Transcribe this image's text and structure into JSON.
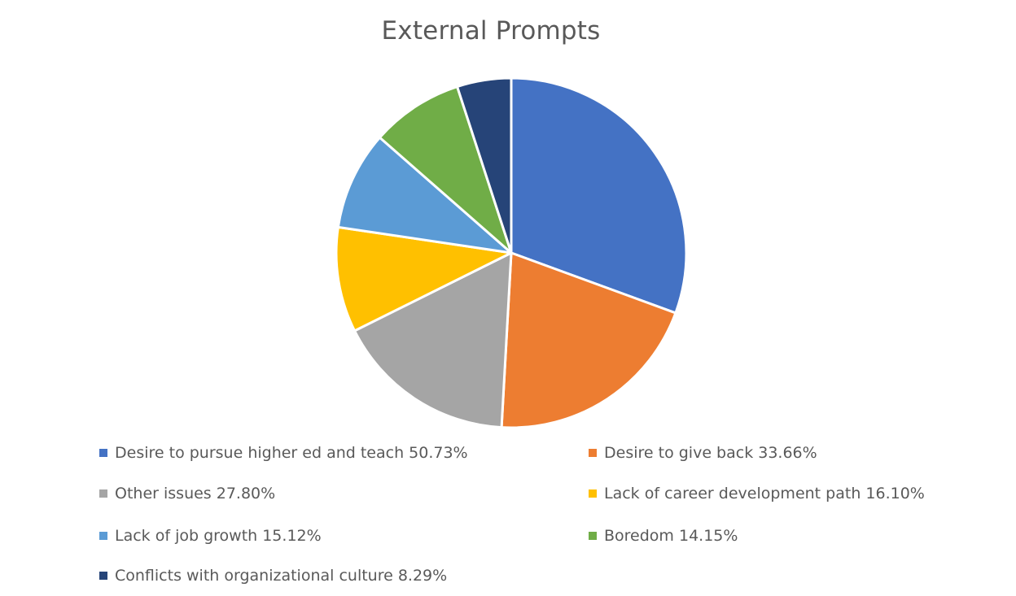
{
  "chart_data": {
    "type": "pie",
    "title": "External Prompts",
    "categories": [
      "Desire to pursue higher ed and teach",
      "Desire to give back",
      "Other issues",
      "Lack of career development path",
      "Lack of job growth",
      "Boredom",
      "Conflicts with organizational culture"
    ],
    "values": [
      50.73,
      33.66,
      27.8,
      16.1,
      15.12,
      14.15,
      8.29
    ],
    "legend_labels": [
      "Desire to pursue higher ed and teach 50.73%",
      "Desire to give back 33.66%",
      "Other issues 27.80%",
      "Lack of career development path 16.10%",
      "Lack of job growth 15.12%",
      "Boredom 14.15%",
      "Conflicts with organizational culture 8.29%"
    ],
    "colors": [
      "#4472C4",
      "#ED7D31",
      "#A5A5A5",
      "#FFC000",
      "#5B9BD5",
      "#70AD47",
      "#264478"
    ],
    "legend_position": "bottom",
    "start_angle": "12 o'clock, clockwise"
  }
}
